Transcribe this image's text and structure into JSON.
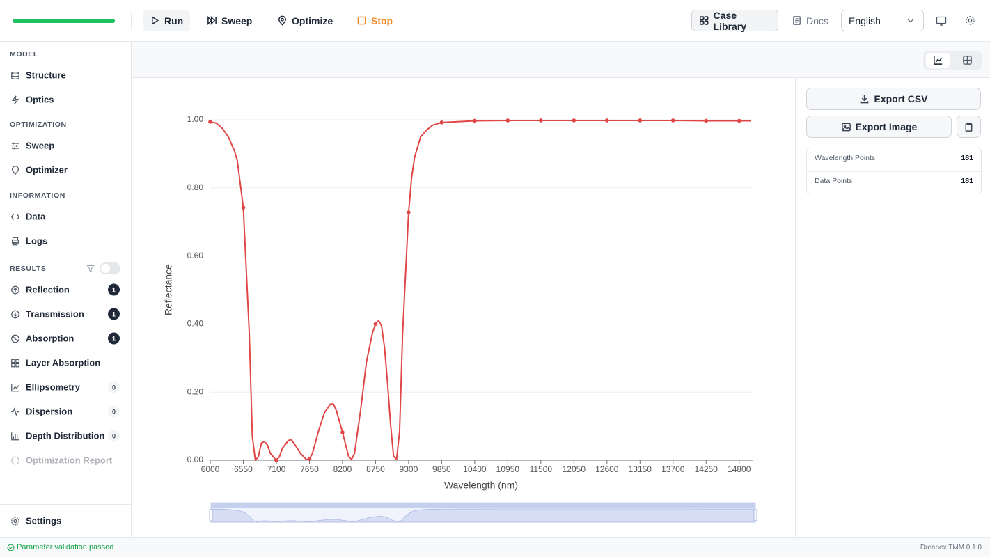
{
  "toolbar": {
    "run": "Run",
    "sweep": "Sweep",
    "optimize": "Optimize",
    "stop": "Stop",
    "case_library": "Case Library",
    "docs": "Docs",
    "language": "English"
  },
  "sidebar": {
    "sections": [
      {
        "title": "MODEL",
        "items": [
          {
            "label": "Structure"
          },
          {
            "label": "Optics"
          }
        ]
      },
      {
        "title": "OPTIMIZATION",
        "items": [
          {
            "label": "Sweep"
          },
          {
            "label": "Optimizer"
          }
        ]
      },
      {
        "title": "INFORMATION",
        "items": [
          {
            "label": "Data"
          },
          {
            "label": "Logs"
          }
        ]
      },
      {
        "title": "RESULTS",
        "items": [
          {
            "label": "Reflection",
            "badge": 1
          },
          {
            "label": "Transmission",
            "badge": 1
          },
          {
            "label": "Absorption",
            "badge": 1
          },
          {
            "label": "Layer Absorption"
          },
          {
            "label": "Ellipsometry",
            "badge": 0
          },
          {
            "label": "Dispersion",
            "badge": 0
          },
          {
            "label": "Depth Distribution",
            "badge": 0
          },
          {
            "label": "Optimization Report",
            "disabled": true
          }
        ]
      }
    ],
    "settings": "Settings"
  },
  "right_panel": {
    "export_csv": "Export CSV",
    "export_image": "Export Image",
    "stats": [
      {
        "label": "Wavelength Points",
        "value": 181
      },
      {
        "label": "Data Points",
        "value": 181
      }
    ]
  },
  "status": {
    "message": "Parameter validation passed",
    "version": "Dreapex TMM 0.1.0"
  },
  "chart_data": {
    "type": "line",
    "xlabel": "Wavelength (nm)",
    "ylabel": "Reflectance",
    "color": "#e04646",
    "x": [
      6000,
      6100,
      6200,
      6300,
      6400,
      6450,
      6550,
      6650,
      6700,
      6750,
      6800,
      6850,
      6900,
      6950,
      7000,
      7100,
      7150,
      7200,
      7300,
      7350,
      7400,
      7500,
      7600,
      7650,
      7700,
      7800,
      7900,
      8000,
      8050,
      8100,
      8200,
      8300,
      8350,
      8400,
      8500,
      8600,
      8700,
      8750,
      8800,
      8850,
      8900,
      8950,
      9000,
      9050,
      9100,
      9150,
      9200,
      9300,
      9350,
      9400,
      9500,
      9600,
      9700,
      9850,
      10400,
      10950,
      11500,
      12050,
      12600,
      13150,
      13700,
      14250,
      14800,
      15000
    ],
    "values": [
      0.994,
      0.99,
      0.975,
      0.95,
      0.91,
      0.88,
      0.742,
      0.37,
      0.07,
      0.0,
      0.01,
      0.05,
      0.055,
      0.045,
      0.02,
      0.0,
      0.01,
      0.035,
      0.058,
      0.06,
      0.048,
      0.02,
      0.002,
      0.004,
      0.02,
      0.085,
      0.14,
      0.165,
      0.165,
      0.145,
      0.082,
      0.012,
      0.002,
      0.02,
      0.145,
      0.29,
      0.375,
      0.4,
      0.41,
      0.395,
      0.33,
      0.225,
      0.105,
      0.012,
      0.002,
      0.085,
      0.37,
      0.728,
      0.83,
      0.89,
      0.95,
      0.97,
      0.984,
      0.992,
      0.997,
      0.998,
      0.998,
      0.998,
      0.998,
      0.998,
      0.998,
      0.997,
      0.997,
      0.997
    ],
    "xlim": [
      6000,
      15000
    ],
    "ylim": [
      0,
      1
    ],
    "xticks": [
      6000,
      6550,
      7100,
      7650,
      8200,
      8750,
      9300,
      9850,
      10400,
      10950,
      11500,
      12050,
      12600,
      13150,
      13700,
      14250,
      14800
    ],
    "yticks": [
      {
        "value": 0,
        "label": "0.00"
      },
      {
        "value": 0.2,
        "label": "0.20"
      },
      {
        "value": 0.4,
        "label": "0.40"
      },
      {
        "value": 0.6,
        "label": "0.60"
      },
      {
        "value": 0.8,
        "label": "0.80"
      },
      {
        "value": 1,
        "label": "1.00"
      }
    ],
    "grid": true
  }
}
